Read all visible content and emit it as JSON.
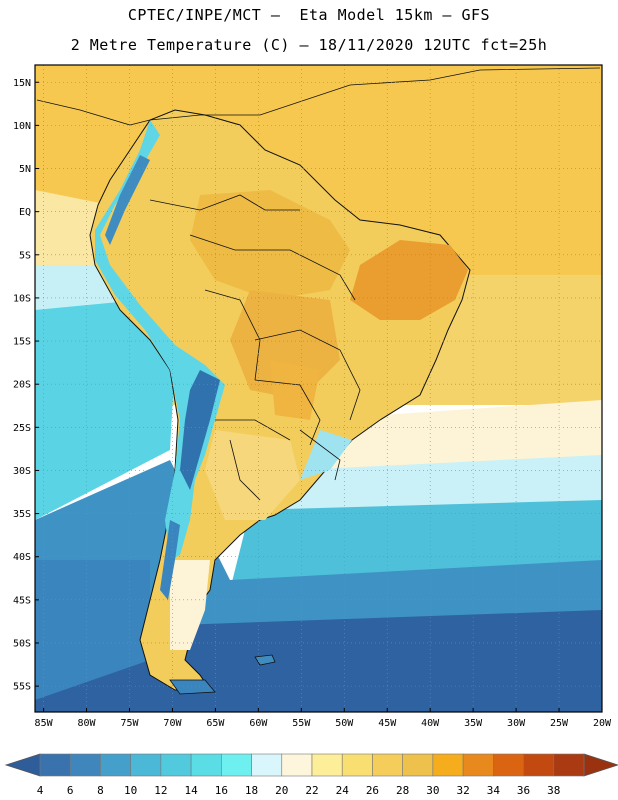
{
  "header": {
    "line1": "CPTEC/INPE/MCT –  Eta Model 15km – GFS",
    "line2": "2 Metre Temperature (C) – 18/11/2020 12UTC fct=25h"
  },
  "axes": {
    "lat_labels": [
      "15N",
      "10N",
      "5N",
      "EQ",
      "5S",
      "10S",
      "15S",
      "20S",
      "25S",
      "30S",
      "35S",
      "40S",
      "45S",
      "50S",
      "55S"
    ],
    "lat_values": [
      15,
      10,
      5,
      0,
      -5,
      -10,
      -15,
      -20,
      -25,
      -30,
      -35,
      -40,
      -45,
      -50,
      -55
    ],
    "lon_labels": [
      "85W",
      "80W",
      "75W",
      "70W",
      "65W",
      "60W",
      "55W",
      "50W",
      "45W",
      "40W",
      "35W",
      "30W",
      "25W",
      "20W"
    ],
    "lon_values": [
      -85,
      -80,
      -75,
      -70,
      -65,
      -60,
      -55,
      -50,
      -45,
      -40,
      -35,
      -30,
      -25,
      -20
    ],
    "lon_range": [
      -86,
      -20
    ],
    "lat_range": [
      -58,
      17
    ],
    "grid": "dotted"
  },
  "colorbar": {
    "ticks": [
      "4",
      "6",
      "8",
      "10",
      "12",
      "14",
      "16",
      "18",
      "20",
      "22",
      "24",
      "26",
      "28",
      "30",
      "32",
      "34",
      "36",
      "38"
    ],
    "colors": [
      "#3a72ad",
      "#3f86bd",
      "#44a0cb",
      "#4ab8d6",
      "#52cadd",
      "#5adde5",
      "#6ff0f0",
      "#d8f6fb",
      "#fdf6dc",
      "#fdee99",
      "#f9df72",
      "#f4cd5b",
      "#eec04c",
      "#f5ac1d",
      "#e8891d",
      "#db6412",
      "#c24a10",
      "#aa3a12",
      "#8e2b10"
    ],
    "low_color": "#2f5d9a",
    "high_color": "#9a3210"
  },
  "colors": {
    "ocean_deep": "#2e5f9d",
    "ocean_mid": "#3f8dc0",
    "ocean_cool": "#4ec3dc",
    "ocean_warm_band": "#9fe8f2",
    "tropical_warm": "#f4cd5b",
    "tropical_hot": "#f3c04a",
    "land_hot": "#eca73a",
    "land_very_hot": "#e69330",
    "andes_cold": "#2f72ad",
    "border": "#111111"
  }
}
